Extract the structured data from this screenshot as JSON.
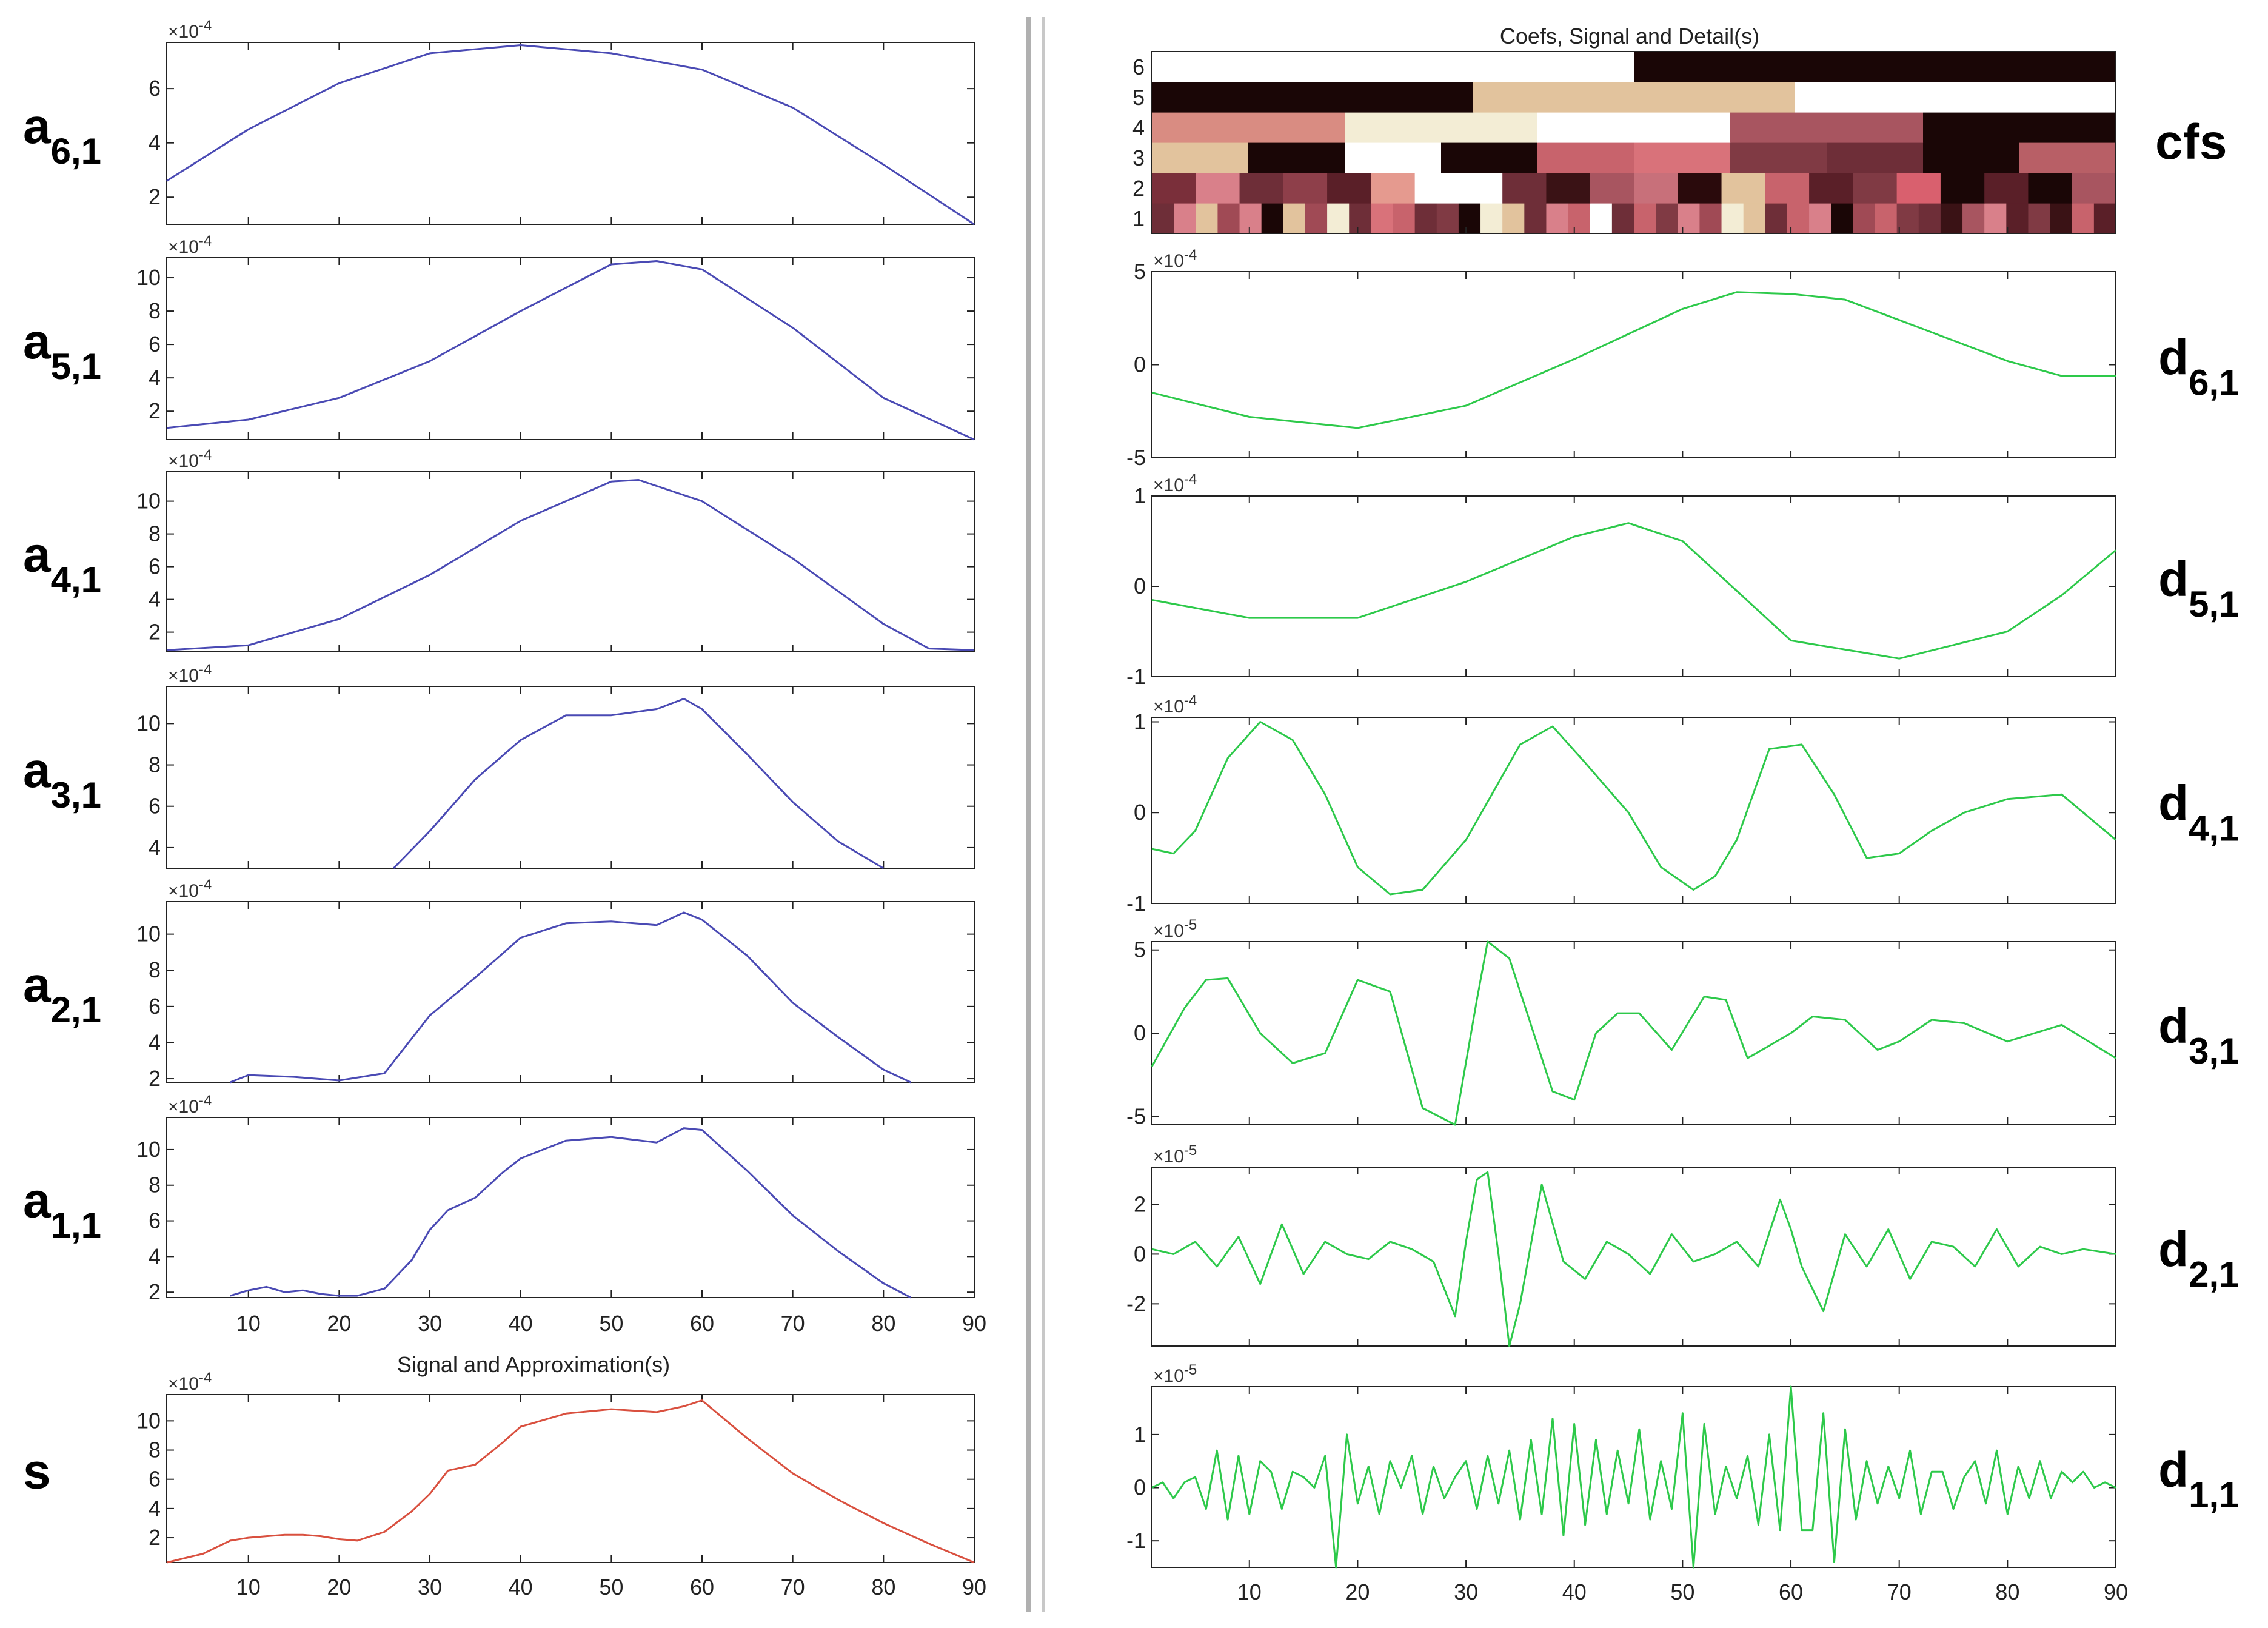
{
  "colors": {
    "approx_line": "#4a4ab4",
    "signal_line": "#d9503f",
    "detail_line": "#2dc94a",
    "axis": "#222222",
    "divider": "#999999"
  },
  "left": {
    "title": "Signal and Approximation(s)",
    "x_ticks": [
      "10",
      "20",
      "30",
      "40",
      "50",
      "60",
      "70",
      "80",
      "90"
    ],
    "panels": [
      {
        "label": "a",
        "sub": "6,1",
        "mult": "×10",
        "exp": "-4",
        "ticks": [
          "2",
          "4",
          "6"
        ]
      },
      {
        "label": "a",
        "sub": "5,1",
        "mult": "×10",
        "exp": "-4",
        "ticks": [
          "2",
          "4",
          "6",
          "8",
          "10"
        ]
      },
      {
        "label": "a",
        "sub": "4,1",
        "mult": "×10",
        "exp": "-4",
        "ticks": [
          "2",
          "4",
          "6",
          "8",
          "10"
        ]
      },
      {
        "label": "a",
        "sub": "3,1",
        "mult": "×10",
        "exp": "-4",
        "ticks": [
          "4",
          "6",
          "8",
          "10"
        ]
      },
      {
        "label": "a",
        "sub": "2,1",
        "mult": "×10",
        "exp": "-4",
        "ticks": [
          "2",
          "4",
          "6",
          "8",
          "10"
        ]
      },
      {
        "label": "a",
        "sub": "1,1",
        "mult": "×10",
        "exp": "-4",
        "ticks": [
          "2",
          "4",
          "6",
          "8",
          "10"
        ]
      },
      {
        "label": "s",
        "sub": "",
        "mult": "×10",
        "exp": "-4",
        "ticks": [
          "2",
          "4",
          "6",
          "8",
          "10"
        ]
      }
    ]
  },
  "right": {
    "title": "Coefs, Signal and Detail(s)",
    "x_ticks": [
      "10",
      "20",
      "30",
      "40",
      "50",
      "60",
      "70",
      "80",
      "90"
    ],
    "cfs": {
      "label": "cfs",
      "levels": [
        "1",
        "2",
        "3",
        "4",
        "5",
        "6"
      ]
    },
    "panels": [
      {
        "label": "d",
        "sub": "6,1",
        "mult": "×10",
        "exp": "-4",
        "ticks": [
          "-5",
          "0",
          "5"
        ]
      },
      {
        "label": "d",
        "sub": "5,1",
        "mult": "×10",
        "exp": "-4",
        "ticks": [
          "-1",
          "0",
          "1"
        ]
      },
      {
        "label": "d",
        "sub": "4,1",
        "mult": "×10",
        "exp": "-4",
        "ticks": [
          "-1",
          "0",
          "1"
        ]
      },
      {
        "label": "d",
        "sub": "3,1",
        "mult": "×10",
        "exp": "-5",
        "ticks": [
          "-5",
          "0",
          "5"
        ]
      },
      {
        "label": "d",
        "sub": "2,1",
        "mult": "×10",
        "exp": "-5",
        "ticks": [
          "-2",
          "0",
          "2"
        ]
      },
      {
        "label": "d",
        "sub": "1,1",
        "mult": "×10",
        "exp": "-5",
        "ticks": [
          "-1",
          "0",
          "1"
        ]
      }
    ]
  },
  "chart_data": [
    {
      "type": "line",
      "panel": "a6,1",
      "xlim": [
        1,
        90
      ],
      "ylim": [
        1,
        7.7
      ],
      "scale": "1e-4",
      "x": [
        1,
        10,
        20,
        30,
        40,
        50,
        60,
        70,
        80,
        90
      ],
      "y": [
        2.6,
        4.5,
        6.2,
        7.3,
        7.6,
        7.3,
        6.7,
        5.3,
        3.2,
        1.0
      ]
    },
    {
      "type": "line",
      "panel": "a5,1",
      "xlim": [
        1,
        90
      ],
      "ylim": [
        0.3,
        11.2
      ],
      "scale": "1e-4",
      "x": [
        1,
        10,
        20,
        30,
        40,
        50,
        55,
        60,
        70,
        80,
        90
      ],
      "y": [
        1.0,
        1.5,
        2.8,
        5.0,
        8.0,
        10.8,
        11.0,
        10.5,
        7.0,
        2.8,
        0.3
      ]
    },
    {
      "type": "line",
      "panel": "a4,1",
      "xlim": [
        1,
        90
      ],
      "ylim": [
        0.8,
        11.8
      ],
      "scale": "1e-4",
      "x": [
        1,
        10,
        20,
        30,
        40,
        50,
        53,
        60,
        70,
        80,
        85,
        90
      ],
      "y": [
        0.9,
        1.2,
        2.8,
        5.5,
        8.8,
        11.2,
        11.3,
        10.0,
        6.5,
        2.5,
        1.0,
        0.9
      ]
    },
    {
      "type": "line",
      "panel": "a3,1",
      "xlim": [
        1,
        90
      ],
      "ylim": [
        3,
        11.8
      ],
      "scale": "1e-4",
      "x": [
        26,
        30,
        35,
        40,
        45,
        50,
        55,
        58,
        60,
        65,
        70,
        75,
        80
      ],
      "y": [
        3.0,
        4.8,
        7.3,
        9.2,
        10.4,
        10.4,
        10.7,
        11.2,
        10.7,
        8.5,
        6.2,
        4.3,
        3.0
      ]
    },
    {
      "type": "line",
      "panel": "a2,1",
      "xlim": [
        1,
        90
      ],
      "ylim": [
        1.8,
        11.8
      ],
      "scale": "1e-4",
      "x": [
        8,
        10,
        15,
        20,
        25,
        30,
        35,
        40,
        45,
        50,
        55,
        58,
        60,
        65,
        70,
        75,
        80,
        83
      ],
      "y": [
        1.8,
        2.2,
        2.1,
        1.9,
        2.3,
        5.5,
        7.6,
        9.8,
        10.6,
        10.7,
        10.5,
        11.2,
        10.8,
        8.8,
        6.2,
        4.3,
        2.5,
        1.8
      ]
    },
    {
      "type": "line",
      "panel": "a1,1",
      "xlim": [
        1,
        90
      ],
      "ylim": [
        1.7,
        11.8
      ],
      "scale": "1e-4",
      "x": [
        8,
        10,
        12,
        14,
        16,
        18,
        20,
        22,
        25,
        28,
        30,
        32,
        35,
        38,
        40,
        45,
        50,
        55,
        58,
        60,
        65,
        70,
        75,
        80,
        83
      ],
      "y": [
        1.8,
        2.1,
        2.3,
        2.0,
        2.1,
        1.9,
        1.8,
        1.8,
        2.2,
        3.8,
        5.5,
        6.6,
        7.3,
        8.7,
        9.5,
        10.5,
        10.7,
        10.4,
        11.2,
        11.1,
        8.8,
        6.3,
        4.3,
        2.5,
        1.7
      ]
    },
    {
      "type": "line",
      "panel": "s",
      "xlim": [
        1,
        90
      ],
      "ylim": [
        0.3,
        11.8
      ],
      "scale": "1e-4",
      "x": [
        1,
        5,
        8,
        10,
        12,
        14,
        16,
        18,
        20,
        22,
        25,
        28,
        30,
        32,
        35,
        38,
        40,
        45,
        50,
        55,
        58,
        60,
        65,
        70,
        75,
        80,
        85,
        90
      ],
      "y": [
        0.3,
        0.9,
        1.8,
        2.0,
        2.1,
        2.2,
        2.2,
        2.1,
        1.9,
        1.8,
        2.4,
        3.8,
        5.0,
        6.6,
        7.0,
        8.5,
        9.6,
        10.5,
        10.8,
        10.6,
        11.0,
        11.4,
        8.8,
        6.4,
        4.6,
        3.0,
        1.6,
        0.3
      ]
    },
    {
      "type": "line",
      "panel": "d6,1",
      "xlim": [
        1,
        90
      ],
      "ylim": [
        -5,
        5
      ],
      "scale": "1e-4",
      "x": [
        1,
        10,
        20,
        30,
        40,
        50,
        55,
        60,
        65,
        70,
        80,
        85,
        90
      ],
      "y": [
        -1.5,
        -2.8,
        -3.4,
        -2.2,
        0.3,
        3.0,
        3.9,
        3.8,
        3.5,
        2.4,
        0.2,
        -0.6,
        -0.6
      ]
    },
    {
      "type": "line",
      "panel": "d5,1",
      "xlim": [
        1,
        90
      ],
      "ylim": [
        -1,
        1
      ],
      "scale": "1e-4",
      "x": [
        1,
        10,
        20,
        30,
        40,
        45,
        50,
        60,
        70,
        80,
        85,
        90
      ],
      "y": [
        -0.15,
        -0.35,
        -0.35,
        0.05,
        0.55,
        0.7,
        0.5,
        -0.6,
        -0.8,
        -0.5,
        -0.1,
        0.4
      ]
    },
    {
      "type": "line",
      "panel": "d4,1",
      "xlim": [
        1,
        90
      ],
      "ylim": [
        -1,
        1.05
      ],
      "scale": "1e-4",
      "x": [
        1,
        3,
        5,
        8,
        11,
        14,
        17,
        20,
        23,
        26,
        30,
        35,
        38,
        41,
        45,
        48,
        51,
        53,
        55,
        58,
        61,
        64,
        67,
        70,
        73,
        76,
        80,
        85,
        90
      ],
      "y": [
        -0.4,
        -0.45,
        -0.2,
        0.6,
        1.0,
        0.8,
        0.2,
        -0.6,
        -0.9,
        -0.85,
        -0.3,
        0.75,
        0.95,
        0.55,
        0.0,
        -0.6,
        -0.85,
        -0.7,
        -0.3,
        0.7,
        0.75,
        0.2,
        -0.5,
        -0.45,
        -0.2,
        0.0,
        0.15,
        0.2,
        -0.3
      ]
    },
    {
      "type": "line",
      "panel": "d3,1",
      "xlim": [
        1,
        90
      ],
      "ylim": [
        -5.5,
        5.5
      ],
      "scale": "1e-5",
      "x": [
        1,
        4,
        6,
        8,
        11,
        14,
        17,
        20,
        23,
        26,
        29,
        31,
        32,
        34,
        36,
        38,
        40,
        42,
        44,
        46,
        49,
        52,
        54,
        56,
        60,
        62,
        65,
        68,
        70,
        73,
        76,
        80,
        85,
        90
      ],
      "y": [
        -2,
        1.5,
        3.2,
        3.3,
        0,
        -1.8,
        -1.2,
        3.2,
        2.5,
        -4.5,
        -5.5,
        2.0,
        5.5,
        4.5,
        0.5,
        -3.5,
        -4.0,
        0.0,
        1.2,
        1.2,
        -1.0,
        2.2,
        2.0,
        -1.5,
        0.0,
        1.0,
        0.8,
        -1.0,
        -0.5,
        0.8,
        0.6,
        -0.5,
        0.5,
        -1.5
      ]
    },
    {
      "type": "line",
      "panel": "d2,1",
      "xlim": [
        1,
        90
      ],
      "ylim": [
        -3.7,
        3.5
      ],
      "scale": "1e-5",
      "x": [
        1,
        3,
        5,
        7,
        9,
        11,
        13,
        15,
        17,
        19,
        21,
        23,
        25,
        27,
        29,
        30,
        31,
        32,
        33,
        34,
        35,
        37,
        39,
        41,
        43,
        45,
        47,
        49,
        51,
        53,
        55,
        57,
        59,
        60,
        61,
        63,
        65,
        67,
        69,
        71,
        73,
        75,
        77,
        79,
        81,
        83,
        85,
        87,
        90
      ],
      "y": [
        0.2,
        0.0,
        0.5,
        -0.5,
        0.7,
        -1.2,
        1.2,
        -0.8,
        0.5,
        0.0,
        -0.2,
        0.5,
        0.2,
        -0.3,
        -2.5,
        0.5,
        3.0,
        3.3,
        0.0,
        -3.7,
        -2.0,
        2.8,
        -0.3,
        -1.0,
        0.5,
        0.0,
        -0.8,
        0.8,
        -0.3,
        0.0,
        0.5,
        -0.5,
        2.2,
        1.0,
        -0.5,
        -2.3,
        0.8,
        -0.5,
        1.0,
        -1.0,
        0.5,
        0.3,
        -0.5,
        1.0,
        -0.5,
        0.3,
        0.0,
        0.2,
        0.0
      ]
    },
    {
      "type": "line",
      "panel": "d1,1",
      "xlim": [
        1,
        90
      ],
      "ylim": [
        -1.5,
        1.9
      ],
      "scale": "1e-5",
      "x": [
        1,
        2,
        3,
        4,
        5,
        6,
        7,
        8,
        9,
        10,
        11,
        12,
        13,
        14,
        15,
        16,
        17,
        18,
        19,
        20,
        21,
        22,
        23,
        24,
        25,
        26,
        27,
        28,
        29,
        30,
        31,
        32,
        33,
        34,
        35,
        36,
        37,
        38,
        39,
        40,
        41,
        42,
        43,
        44,
        45,
        46,
        47,
        48,
        49,
        50,
        51,
        52,
        53,
        54,
        55,
        56,
        57,
        58,
        59,
        60,
        61,
        62,
        63,
        64,
        65,
        66,
        67,
        68,
        69,
        70,
        71,
        72,
        73,
        74,
        75,
        76,
        77,
        78,
        79,
        80,
        81,
        82,
        83,
        84,
        85,
        86,
        87,
        88,
        89,
        90
      ],
      "y": [
        0.0,
        0.1,
        -0.2,
        0.1,
        0.2,
        -0.4,
        0.7,
        -0.6,
        0.6,
        -0.5,
        0.5,
        0.3,
        -0.4,
        0.3,
        0.2,
        0.0,
        0.6,
        -1.5,
        1.0,
        -0.3,
        0.4,
        -0.5,
        0.5,
        0.0,
        0.6,
        -0.5,
        0.4,
        -0.2,
        0.2,
        0.5,
        -0.4,
        0.6,
        -0.3,
        0.7,
        -0.6,
        0.9,
        -0.5,
        1.3,
        -0.9,
        1.2,
        -0.7,
        0.9,
        -0.5,
        0.7,
        -0.3,
        1.1,
        -0.6,
        0.5,
        -0.4,
        1.4,
        -1.5,
        1.2,
        -0.5,
        0.4,
        -0.2,
        0.6,
        -0.7,
        1.0,
        -0.8,
        1.9,
        -0.8,
        -0.8,
        1.4,
        -1.4,
        1.1,
        -0.6,
        0.5,
        -0.3,
        0.4,
        -0.2,
        0.7,
        -0.5,
        0.3,
        0.3,
        -0.4,
        0.2,
        0.5,
        -0.3,
        0.7,
        -0.5,
        0.4,
        -0.2,
        0.5,
        -0.2,
        0.3,
        0.1,
        0.3,
        0.0,
        0.1,
        0.0
      ]
    }
  ],
  "cfs_data": {
    "type": "heatmap",
    "levels": [
      1,
      2,
      3,
      4,
      5,
      6
    ],
    "rows": {
      "6": [
        "#ffffff",
        "#1a0606"
      ],
      "5": [
        "#1a0606",
        "#e2c39d",
        "#ffffff"
      ],
      "4": [
        "#d98c82",
        "#f3edd5",
        "#ffffff",
        "#a85560",
        "#1a0606"
      ],
      "3": [
        "#e2c39d",
        "#1a0606",
        "#ffffff",
        "#1a0606",
        "#c8636c",
        "#d9727a",
        "#803a44",
        "#6e2e38",
        "#1a0606",
        "#b85f66"
      ],
      "2": [
        "#7a2f3a",
        "#d9808a",
        "#6e2e38",
        "#8e3f4a",
        "#5a1f28",
        "#e59a8f",
        "#ffffff",
        "#ffffff",
        "#6e2e38",
        "#3a1215",
        "#a85560",
        "#c8707a",
        "#2a0a0c",
        "#e2c39d",
        "#c8636c",
        "#5a1f28",
        "#803a44",
        "#d9606e",
        "#1a0606",
        "#5a1f28",
        "#1a0606",
        "#a85560"
      ],
      "1": [
        "#6e2e38",
        "#d9808a",
        "#e2c39d",
        "#a04a55",
        "#d9808a",
        "#1a0606",
        "#e2c39d",
        "#a04a55",
        "#f3edd5",
        "#6e2e38",
        "#d9727a",
        "#c8636c",
        "#6e2e38",
        "#803a44",
        "#1a0606",
        "#f3edd5",
        "#e2c39d",
        "#6e2e38",
        "#d9808a",
        "#c8636c",
        "#ffffff",
        "#6e2e38",
        "#c8636c",
        "#803a44",
        "#d9808a",
        "#a04a55",
        "#f3edd5",
        "#e2c39d",
        "#6e2e38",
        "#c8636c",
        "#d9808a",
        "#1a0606",
        "#a04a55",
        "#c8636c",
        "#803a44",
        "#6e2e38",
        "#3a1215",
        "#a85560",
        "#d9808a",
        "#5a1f28",
        "#803a44",
        "#3a1215",
        "#c8636c",
        "#5a1f28"
      ]
    }
  }
}
